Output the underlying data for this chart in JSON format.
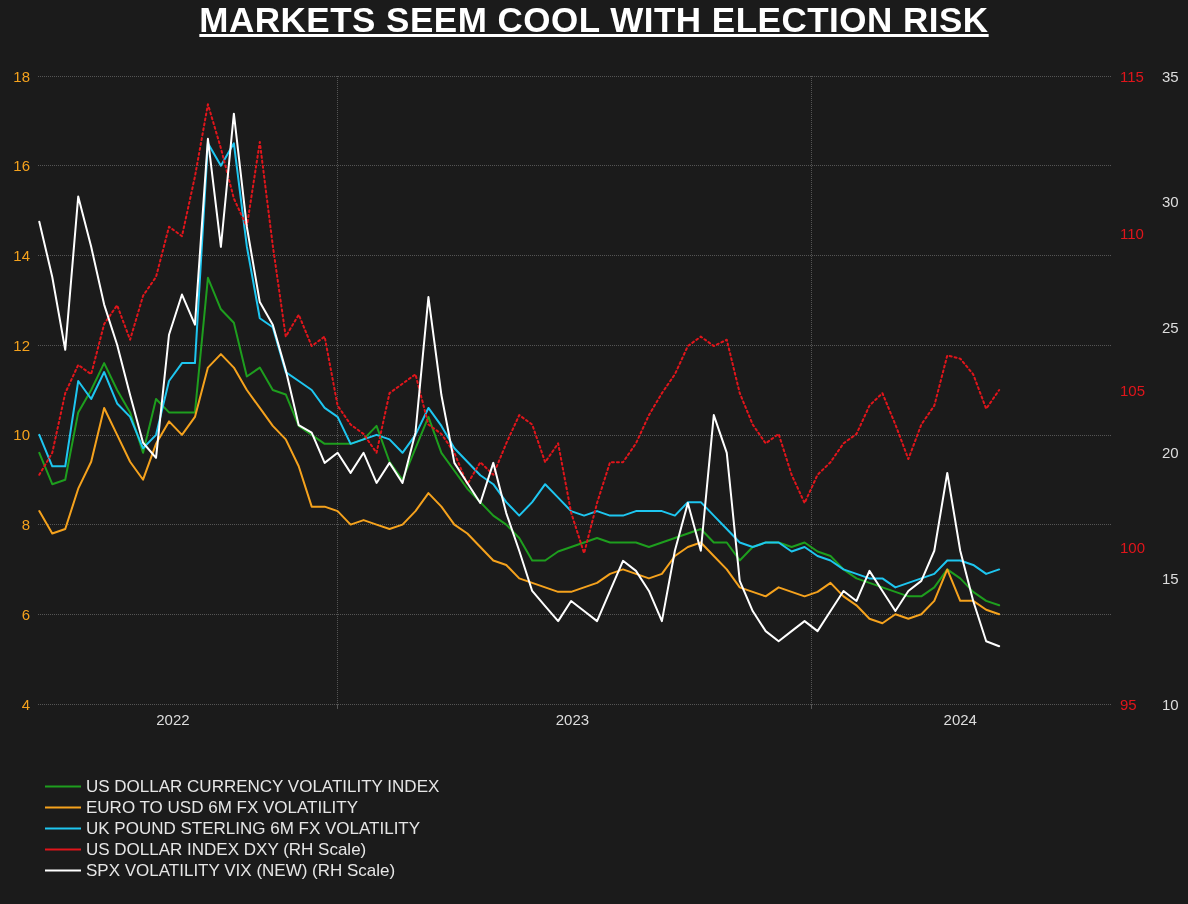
{
  "chart_data": {
    "type": "line",
    "title": "MARKETS SEEM COOL WITH ELECTION RISK",
    "x": [
      "2022-05-16",
      "2022-05-26",
      "2022-06-05",
      "2022-06-15",
      "2022-06-25",
      "2022-07-05",
      "2022-07-15",
      "2022-07-25",
      "2022-08-04",
      "2022-08-14",
      "2022-08-24",
      "2022-09-03",
      "2022-09-13",
      "2022-09-23",
      "2022-10-03",
      "2022-10-13",
      "2022-10-23",
      "2022-11-02",
      "2022-11-12",
      "2022-11-22",
      "2022-12-02",
      "2022-12-12",
      "2022-12-22",
      "2023-01-01",
      "2023-01-11",
      "2023-01-21",
      "2023-01-31",
      "2023-02-10",
      "2023-02-20",
      "2023-03-02",
      "2023-03-12",
      "2023-03-22",
      "2023-04-01",
      "2023-04-11",
      "2023-04-21",
      "2023-05-01",
      "2023-05-11",
      "2023-05-21",
      "2023-05-31",
      "2023-06-10",
      "2023-06-20",
      "2023-06-30",
      "2023-07-10",
      "2023-07-20",
      "2023-07-30",
      "2023-08-09",
      "2023-08-19",
      "2023-08-29",
      "2023-09-08",
      "2023-09-18",
      "2023-09-28",
      "2023-10-08",
      "2023-10-18",
      "2023-10-28",
      "2023-11-07",
      "2023-11-17",
      "2023-11-27",
      "2023-12-07",
      "2023-12-17",
      "2023-12-27",
      "2024-01-06",
      "2024-01-16",
      "2024-01-26",
      "2024-02-05",
      "2024-02-15",
      "2024-02-25",
      "2024-03-06",
      "2024-03-16",
      "2024-03-26",
      "2024-04-05",
      "2024-04-15",
      "2024-04-25",
      "2024-05-05",
      "2024-05-15",
      "2024-05-25"
    ],
    "series": [
      {
        "name": "US DOLLAR CURRENCY VOLATILITY INDEX",
        "color": "#1e9e1e",
        "axis": "y",
        "line_style": "solid",
        "values": [
          9.6,
          8.9,
          9.0,
          10.5,
          11.0,
          11.6,
          11.0,
          10.5,
          9.6,
          10.8,
          10.5,
          10.5,
          10.5,
          13.5,
          12.8,
          12.5,
          11.3,
          11.5,
          11.0,
          10.9,
          10.2,
          10.0,
          9.8,
          9.8,
          9.8,
          9.9,
          10.2,
          9.4,
          9.0,
          9.7,
          10.4,
          9.6,
          9.2,
          8.8,
          8.5,
          8.2,
          8.0,
          7.7,
          7.2,
          7.2,
          7.4,
          7.5,
          7.6,
          7.7,
          7.6,
          7.6,
          7.6,
          7.5,
          7.6,
          7.7,
          7.8,
          7.9,
          7.6,
          7.6,
          7.2,
          7.5,
          7.6,
          7.6,
          7.5,
          7.6,
          7.4,
          7.3,
          7.0,
          6.8,
          6.7,
          6.6,
          6.5,
          6.4,
          6.4,
          6.6,
          7.0,
          6.8,
          6.5,
          6.3,
          6.2
        ]
      },
      {
        "name": "EURO TO USD 6M FX VOLATILITY",
        "color": "#f5a21d",
        "axis": "y",
        "line_style": "solid",
        "values": [
          8.3,
          7.8,
          7.9,
          8.8,
          9.4,
          10.6,
          10.0,
          9.4,
          9.0,
          9.8,
          10.3,
          10.0,
          10.4,
          11.5,
          11.8,
          11.5,
          11.0,
          10.6,
          10.2,
          9.9,
          9.3,
          8.4,
          8.4,
          8.3,
          8.0,
          8.1,
          8.0,
          7.9,
          8.0,
          8.3,
          8.7,
          8.4,
          8.0,
          7.8,
          7.5,
          7.2,
          7.1,
          6.8,
          6.7,
          6.6,
          6.5,
          6.5,
          6.6,
          6.7,
          6.9,
          7.0,
          6.9,
          6.8,
          6.9,
          7.3,
          7.5,
          7.6,
          7.3,
          7.0,
          6.6,
          6.5,
          6.4,
          6.6,
          6.5,
          6.4,
          6.5,
          6.7,
          6.4,
          6.2,
          5.9,
          5.8,
          6.0,
          5.9,
          6.0,
          6.3,
          7.0,
          6.3,
          6.3,
          6.1,
          6.0
        ]
      },
      {
        "name": "UK POUND STERLING 6M FX VOLATILITY",
        "color": "#1ec6f0",
        "axis": "y",
        "line_style": "solid",
        "values": [
          10.0,
          9.3,
          9.3,
          11.2,
          10.8,
          11.4,
          10.7,
          10.4,
          9.7,
          10.0,
          11.2,
          11.6,
          11.6,
          16.5,
          16.0,
          16.5,
          14.2,
          12.6,
          12.4,
          11.4,
          11.2,
          11.0,
          10.6,
          10.4,
          9.8,
          9.9,
          10.0,
          9.9,
          9.6,
          10.0,
          10.6,
          10.2,
          9.7,
          9.4,
          9.1,
          8.9,
          8.5,
          8.2,
          8.5,
          8.9,
          8.6,
          8.3,
          8.2,
          8.3,
          8.2,
          8.2,
          8.3,
          8.3,
          8.3,
          8.2,
          8.5,
          8.5,
          8.2,
          7.9,
          7.6,
          7.5,
          7.6,
          7.6,
          7.4,
          7.5,
          7.3,
          7.2,
          7.0,
          6.9,
          6.8,
          6.8,
          6.6,
          6.7,
          6.8,
          6.9,
          7.2,
          7.2,
          7.1,
          6.9,
          7.0
        ]
      },
      {
        "name": "US DOLLAR INDEX DXY (RH Scale)",
        "color": "#e0151b",
        "axis": "y2",
        "line_style": "dotted",
        "values": [
          102.3,
          103.0,
          104.9,
          105.8,
          105.5,
          107.1,
          107.7,
          106.6,
          108.0,
          108.6,
          110.2,
          109.9,
          111.8,
          114.1,
          112.7,
          111.1,
          110.2,
          112.9,
          109.6,
          106.7,
          107.4,
          106.4,
          106.7,
          104.5,
          103.9,
          103.6,
          103.0,
          104.9,
          105.2,
          105.5,
          103.9,
          103.6,
          103.0,
          102.0,
          102.7,
          102.3,
          103.3,
          104.2,
          103.9,
          102.7,
          103.3,
          101.1,
          99.8,
          101.4,
          102.7,
          102.7,
          103.3,
          104.2,
          104.9,
          105.5,
          106.4,
          106.7,
          106.4,
          106.6,
          104.9,
          103.9,
          103.3,
          103.6,
          102.3,
          101.4,
          102.3,
          102.7,
          103.3,
          103.6,
          104.5,
          104.9,
          103.9,
          102.8,
          103.9,
          104.5,
          106.1,
          106.0,
          105.5,
          104.4,
          105.0
        ]
      },
      {
        "name": "SPX VOLATILITY VIX (NEW) (RH Scale)",
        "color": "#ffffff",
        "axis": "y3",
        "line_style": "solid",
        "values": [
          29.2,
          27.0,
          24.1,
          30.2,
          28.2,
          25.9,
          24.3,
          22.3,
          20.4,
          19.8,
          24.7,
          26.3,
          25.1,
          32.5,
          28.2,
          33.5,
          29.0,
          26.0,
          25.1,
          23.3,
          21.1,
          20.8,
          19.6,
          20.0,
          19.2,
          20.0,
          18.8,
          19.6,
          18.8,
          20.8,
          26.2,
          22.3,
          19.6,
          18.8,
          18.0,
          19.6,
          17.6,
          16.1,
          14.5,
          13.9,
          13.3,
          14.1,
          13.7,
          13.3,
          14.5,
          15.7,
          15.3,
          14.5,
          13.3,
          16.1,
          18.0,
          16.1,
          21.5,
          20.0,
          14.9,
          13.7,
          12.9,
          12.5,
          12.9,
          13.3,
          12.9,
          13.7,
          14.5,
          14.1,
          15.3,
          14.5,
          13.7,
          14.5,
          14.9,
          16.1,
          19.2,
          16.1,
          14.1,
          12.5,
          12.3
        ]
      }
    ],
    "xlim": [
      "2022-05-15",
      "2024-08-20"
    ],
    "xticks": [
      {
        "value": "2022-08-27",
        "label": "2022"
      },
      {
        "value": "2023-01-01",
        "label": null
      },
      {
        "value": "2023-07-01",
        "label": "2023"
      },
      {
        "value": "2024-01-01",
        "label": null
      },
      {
        "value": "2024-04-25",
        "label": "2024"
      }
    ],
    "ylim": [
      4,
      18
    ],
    "yticks": [
      4,
      6,
      8,
      10,
      12,
      14,
      16,
      18
    ],
    "y2lim": [
      95,
      115
    ],
    "y2ticks": [
      95,
      100,
      105,
      110,
      115
    ],
    "y3lim": [
      10,
      35
    ],
    "y3ticks": [
      10,
      15,
      20,
      25,
      30,
      35
    ],
    "grid": true,
    "legend": "bottom left",
    "marker": "none"
  }
}
